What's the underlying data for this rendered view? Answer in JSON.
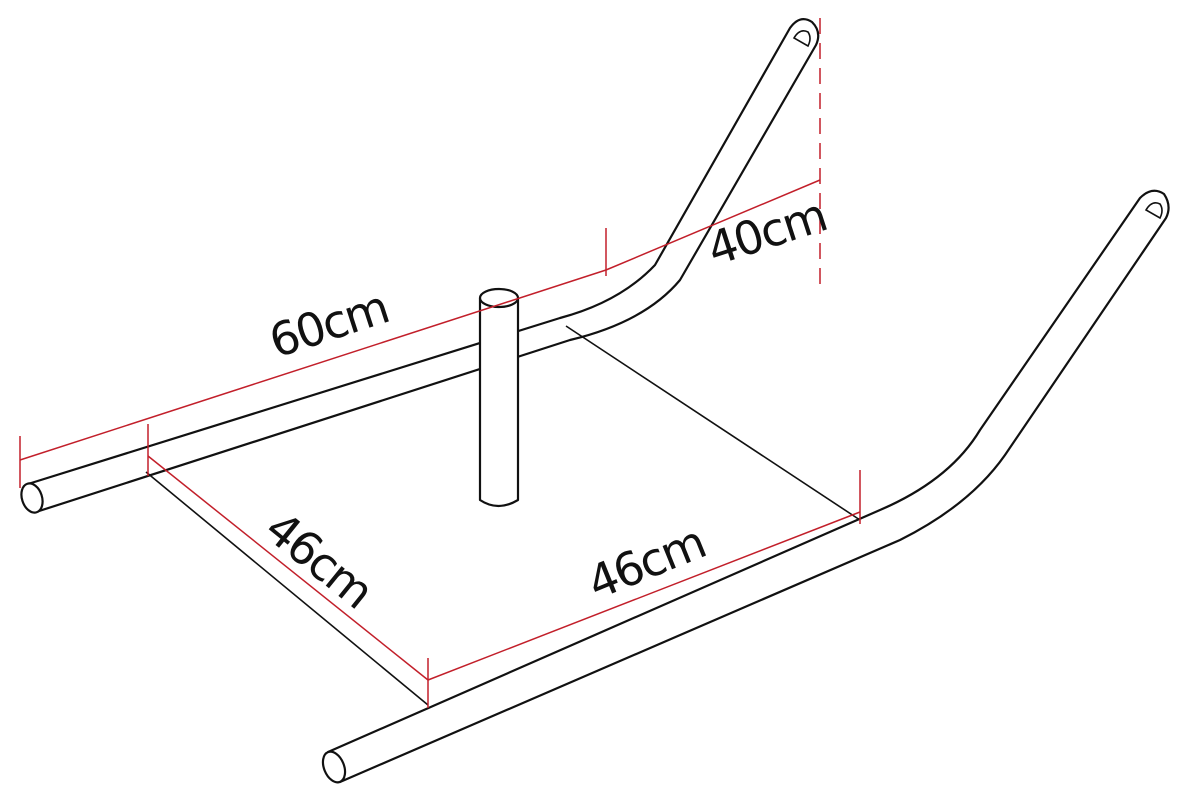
{
  "diagram": {
    "dimensions": {
      "runner_length": "60cm",
      "handle_height": "40cm",
      "plate_depth": "46cm",
      "plate_width": "46cm"
    },
    "colors": {
      "outline": "#111111",
      "dimension_line": "#c21f2a",
      "background": "#ffffff"
    }
  }
}
